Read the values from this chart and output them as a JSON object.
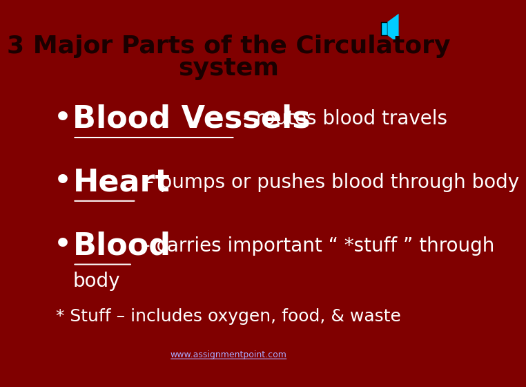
{
  "background_color": "#800000",
  "title_line1": "3 Major Parts of the Circulatory",
  "title_line2": "system",
  "title_color": "#1a0000",
  "title_fontsize": 26,
  "bullet_color": "#ffffff",
  "bullet1_bold": "Blood Vessels",
  "bullet1_rest": " - routes blood travels",
  "bullet2_bold": "Heart",
  "bullet2_rest": " – pumps or pushes blood through body",
  "bullet3_bold": "Blood",
  "bullet3_rest": " – carries important “ *stuff ” through",
  "bullet3_cont": "body",
  "note_text": "* Stuff – includes oxygen, food, & waste",
  "note_color": "#ffffff",
  "note_fontsize": 18,
  "url_text": "www.assignmentpoint.com",
  "url_color": "#aaaaff",
  "url_fontsize": 9,
  "bullet_fontsize_bold": 32,
  "bullet_fontsize_rest": 20,
  "bullet_symbol": "•",
  "speaker_icon_color": "#00ccff"
}
